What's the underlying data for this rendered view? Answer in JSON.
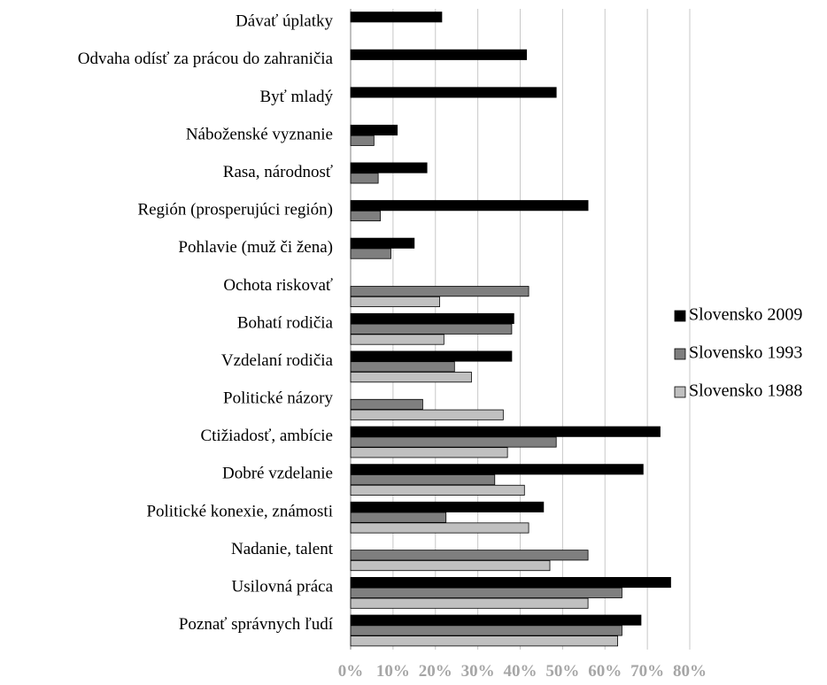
{
  "chart_data": {
    "type": "bar",
    "orientation": "horizontal",
    "categories": [
      "Dávať úplatky",
      "Odvaha odísť za prácou do zahraničia",
      "Byť mladý",
      "Náboženské vyznanie",
      "Rasa, národnosť",
      "Región (prosperujúci región)",
      "Pohlavie (muž či žena)",
      "Ochota riskovať",
      "Bohatí rodičia",
      "Vzdelaní rodičia",
      "Politické názory",
      "Ctižiadosť, ambície",
      "Dobré vzdelanie",
      "Politické konexie, známosti",
      "Nadanie, talent",
      "Usilovná práca",
      "Poznať správnych ľudí"
    ],
    "series": [
      {
        "name": "Slovensko 2009",
        "color": "#000000",
        "values": [
          21.5,
          41.5,
          48.5,
          11,
          18,
          56,
          15,
          null,
          38.5,
          38,
          null,
          73,
          69,
          45.5,
          null,
          75.5,
          68.5
        ]
      },
      {
        "name": "Slovensko 1993",
        "color": "#7f7f7f",
        "values": [
          null,
          null,
          null,
          5.5,
          6.5,
          7,
          9.5,
          42,
          38,
          24.5,
          17,
          48.5,
          34,
          22.5,
          56,
          64,
          64
        ]
      },
      {
        "name": "Slovensko 1988",
        "color": "#c0c0c0",
        "values": [
          null,
          null,
          null,
          null,
          null,
          null,
          null,
          21,
          22,
          28.5,
          36,
          37,
          41,
          42,
          47,
          56,
          63
        ]
      }
    ],
    "xlim": [
      0,
      80
    ],
    "xticks": [
      "0%",
      "10%",
      "20%",
      "30%",
      "40%",
      "50%",
      "60%",
      "70%",
      "80%"
    ],
    "grid": "vertical",
    "legend": "right",
    "title": "",
    "xlabel": "",
    "ylabel": ""
  }
}
